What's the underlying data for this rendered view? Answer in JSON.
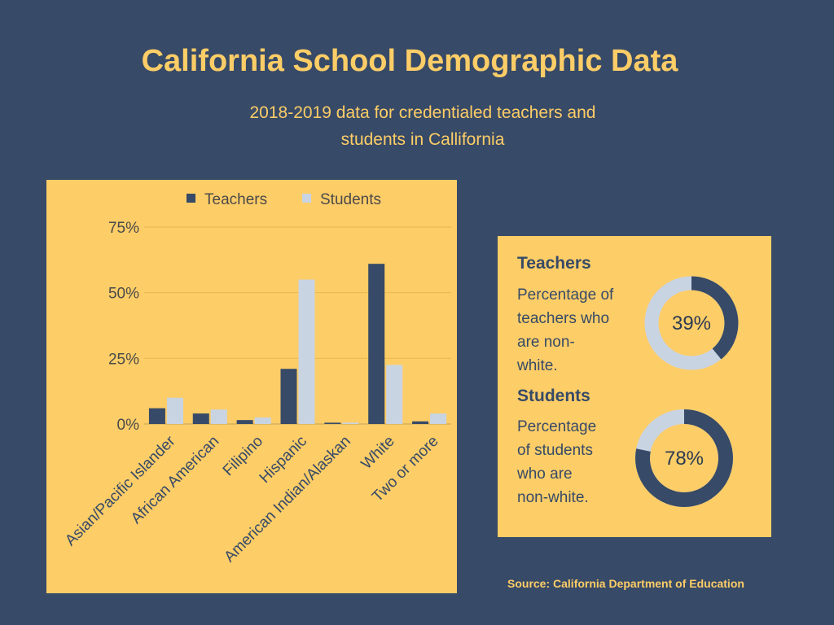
{
  "title": "California School Demographic Data",
  "subtitle": "2018-2019 data for credentialed teachers and students in Callifornia",
  "colors": {
    "background": "#374a67",
    "accent": "#fdcd67",
    "teachers": "#374a67",
    "students": "#c9d4e3"
  },
  "chart_data": {
    "type": "bar",
    "categories": [
      "Asian/Pacific Islander",
      "African American",
      "Filipino",
      "Hispanic",
      "American Indian/Alaskan",
      "White",
      "Two or more"
    ],
    "series": [
      {
        "name": "Teachers",
        "values": [
          6,
          4,
          1.5,
          21,
          0.5,
          61,
          1
        ]
      },
      {
        "name": "Students",
        "values": [
          10,
          5.5,
          2.5,
          55,
          0.5,
          22.5,
          4
        ]
      }
    ],
    "ylim": [
      0,
      75
    ],
    "yticks": [
      "0%",
      "25%",
      "50%",
      "75%"
    ],
    "ytick_values": [
      0,
      25,
      50,
      75
    ],
    "legend": "top"
  },
  "stats": {
    "teachers": {
      "heading": "Teachers",
      "desc_lines": [
        "Percentage of",
        "teachers who",
        "are non-",
        "white."
      ],
      "percent": 39,
      "label": "39%"
    },
    "students": {
      "heading": "Students",
      "desc_lines": [
        "Percentage",
        "of students",
        "who are",
        "non-white."
      ],
      "percent": 78,
      "label": "78%"
    }
  },
  "source": "Source: California Department of Education"
}
